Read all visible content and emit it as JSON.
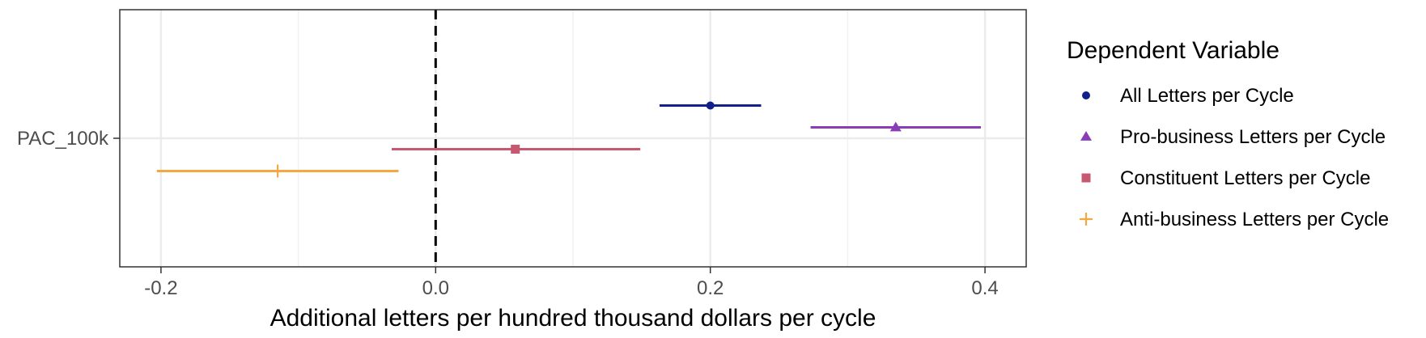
{
  "chart_data": {
    "type": "scatter",
    "subtype": "coefficient-plot-with-error-bars",
    "xlabel": "Additional letters per hundred thousand dollars per cycle",
    "ylabel": "",
    "xlim": [
      -0.23,
      0.43
    ],
    "x_ticks": [
      {
        "value": -0.2,
        "label": "-0.2"
      },
      {
        "value": 0.0,
        "label": "0.0"
      },
      {
        "value": 0.2,
        "label": "0.2"
      },
      {
        "value": 0.4,
        "label": "0.4"
      }
    ],
    "y_categories": [
      "PAC_100k"
    ],
    "reference_line": {
      "x": 0,
      "style": "dashed"
    },
    "grid": true,
    "legend": {
      "title": "Dependent Variable",
      "placement": "right"
    },
    "series": [
      {
        "name": "All Letters per Cycle",
        "color": "#10218b",
        "marker": "circle",
        "category": "PAC_100k",
        "estimate": 0.2,
        "low": 0.163,
        "high": 0.237,
        "dodge": -1.5
      },
      {
        "name": "Pro-business Letters per Cycle",
        "color": "#8a3db6",
        "marker": "triangle",
        "category": "PAC_100k",
        "estimate": 0.335,
        "low": 0.273,
        "high": 0.397,
        "dodge": -0.5
      },
      {
        "name": "Constituent Letters per Cycle",
        "color": "#c6596f",
        "marker": "square",
        "category": "PAC_100k",
        "estimate": 0.058,
        "low": -0.032,
        "high": 0.149,
        "dodge": 0.5
      },
      {
        "name": "Anti-business Letters per Cycle",
        "color": "#f5a742",
        "marker": "plus",
        "category": "PAC_100k",
        "estimate": -0.115,
        "low": -0.203,
        "high": -0.027,
        "dodge": 1.5
      }
    ]
  }
}
